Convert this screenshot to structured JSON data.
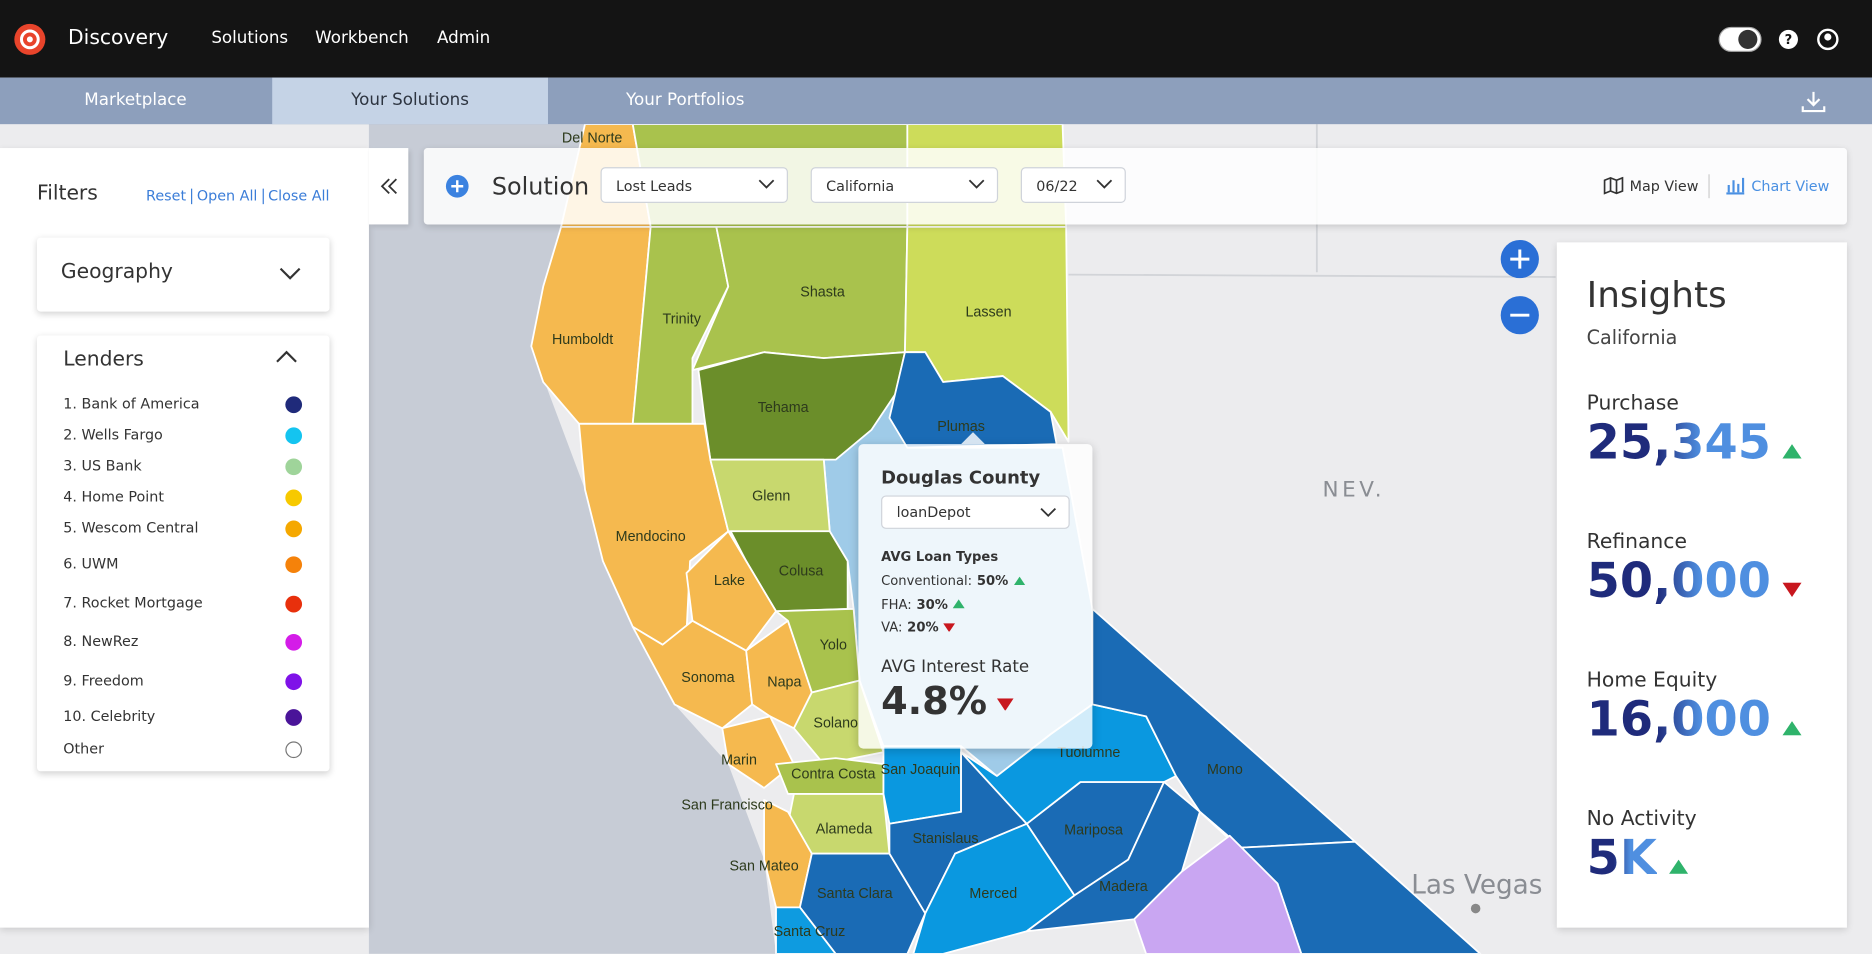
{
  "nav": {
    "brand": "Discovery",
    "links": [
      "Solutions",
      "Workbench",
      "Admin"
    ]
  },
  "tabs": {
    "items": [
      "Marketplace",
      "Your Solutions",
      "Your Portfolios"
    ],
    "active": 1
  },
  "filters": {
    "title": "Filters",
    "actions": [
      "Reset",
      "Open All",
      "Close All"
    ],
    "geography": {
      "title": "Geography"
    },
    "lenders": {
      "title": "Lenders",
      "items": [
        {
          "name": "1. Bank of America",
          "color": "#1f2a7a"
        },
        {
          "name": "2. Wells Fargo",
          "color": "#14c4f0"
        },
        {
          "name": "3. US Bank",
          "color": "#9fd49a"
        },
        {
          "name": "4. Home Point",
          "color": "#f7c900"
        },
        {
          "name": "5. Wescom Central",
          "color": "#f5a800"
        },
        {
          "name": "6. UWM",
          "color": "#f5820a"
        },
        {
          "name": "7. Rocket Mortgage",
          "color": "#e8300c"
        },
        {
          "name": "8. NewRez",
          "color": "#d41ce8"
        },
        {
          "name": "9. Freedom",
          "color": "#7f12e8"
        },
        {
          "name": "10. Celebrity",
          "color": "#4a1499"
        },
        {
          "name": "Other"
        }
      ]
    }
  },
  "toolbar": {
    "title": "Solution",
    "dropdowns": [
      "Lost Leads",
      "California",
      "06/22"
    ],
    "views": [
      "Map View",
      "Chart View"
    ],
    "active_view": 0
  },
  "insights": {
    "title": "Insights",
    "region": "California",
    "metrics": [
      {
        "label": "Purchase",
        "value": "25,345",
        "trend": "up"
      },
      {
        "label": "Refinance",
        "value": "50,000",
        "trend": "down"
      },
      {
        "label": "Home Equity",
        "value": "16,000",
        "trend": "up"
      },
      {
        "label": "No Activity",
        "value": "5K",
        "trend": "up"
      }
    ]
  },
  "tooltip": {
    "title": "Douglas County",
    "lender": "loanDepot",
    "loan_types_title": "AVG Loan Types",
    "loan_types": [
      {
        "label": "Conventional:",
        "value": "50%",
        "trend": "up"
      },
      {
        "label": "FHA:",
        "value": "30%",
        "trend": "up"
      },
      {
        "label": "VA:",
        "value": "20%",
        "trend": "down"
      }
    ],
    "rate_title": "AVG Interest Rate",
    "rate": "4.8%",
    "rate_trend": "down"
  },
  "map": {
    "state_label": "NEV.",
    "city_label": "Las Vegas",
    "counties": [
      "Del Norte",
      "Humboldt",
      "Trinity",
      "Shasta",
      "Lassen",
      "Tehama",
      "Plumas",
      "Glenn",
      "Mendocino",
      "Lake",
      "Colusa",
      "Yolo",
      "Sonoma",
      "Napa",
      "Solano",
      "Marin",
      "Contra Costa",
      "San Francisco",
      "Alameda",
      "San Mateo",
      "Santa Clara",
      "Santa Cruz",
      "San Joaquin",
      "Stanislaus",
      "Merced",
      "Mariposa",
      "Madera",
      "Tuolumne",
      "Mono"
    ]
  }
}
